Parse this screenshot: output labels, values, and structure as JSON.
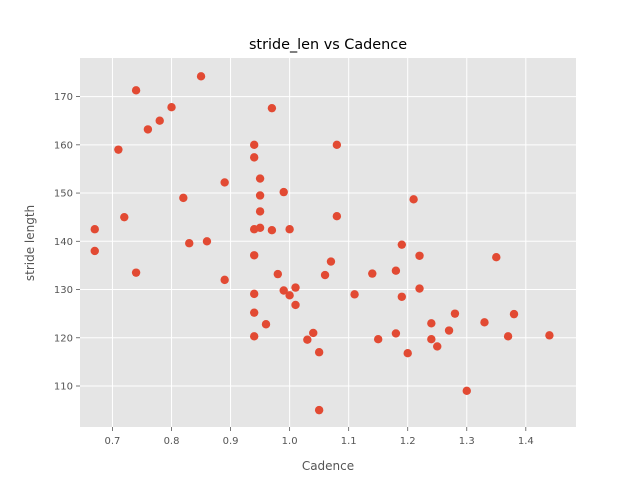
{
  "chart_data": {
    "type": "scatter",
    "title": "stride_len vs Cadence",
    "xlabel": "Cadence",
    "ylabel": "stride length",
    "xlim": [
      0.645,
      1.485
    ],
    "ylim": [
      101.5,
      178
    ],
    "grid": true,
    "style": "ggplot",
    "colors": {
      "plot_background": "#e5e5e5",
      "grid": "#ffffff",
      "point": "#e24a33",
      "text": "#555555",
      "tick": "#555555"
    },
    "xticks": [
      {
        "value": 0.7,
        "label": "0.7"
      },
      {
        "value": 0.8,
        "label": "0.8"
      },
      {
        "value": 0.9,
        "label": "0.9"
      },
      {
        "value": 1.0,
        "label": "1.0"
      },
      {
        "value": 1.1,
        "label": "1.1"
      },
      {
        "value": 1.2,
        "label": "1.2"
      },
      {
        "value": 1.3,
        "label": "1.3"
      },
      {
        "value": 1.4,
        "label": "1.4"
      }
    ],
    "yticks": [
      {
        "value": 110,
        "label": "110"
      },
      {
        "value": 120,
        "label": "120"
      },
      {
        "value": 130,
        "label": "130"
      },
      {
        "value": 140,
        "label": "140"
      },
      {
        "value": 150,
        "label": "150"
      },
      {
        "value": 160,
        "label": "160"
      },
      {
        "value": 170,
        "label": "170"
      }
    ],
    "points": [
      {
        "x": 0.67,
        "y": 142.5
      },
      {
        "x": 0.67,
        "y": 138.0
      },
      {
        "x": 0.71,
        "y": 159.0
      },
      {
        "x": 0.72,
        "y": 145.0
      },
      {
        "x": 0.74,
        "y": 171.3
      },
      {
        "x": 0.74,
        "y": 133.5
      },
      {
        "x": 0.76,
        "y": 163.2
      },
      {
        "x": 0.78,
        "y": 165.0
      },
      {
        "x": 0.8,
        "y": 167.8
      },
      {
        "x": 0.82,
        "y": 149.0
      },
      {
        "x": 0.83,
        "y": 139.6
      },
      {
        "x": 0.85,
        "y": 174.2
      },
      {
        "x": 0.86,
        "y": 140.0
      },
      {
        "x": 0.89,
        "y": 152.2
      },
      {
        "x": 0.89,
        "y": 132.0
      },
      {
        "x": 0.94,
        "y": 160.0
      },
      {
        "x": 0.94,
        "y": 157.4
      },
      {
        "x": 0.94,
        "y": 142.5
      },
      {
        "x": 0.94,
        "y": 137.1
      },
      {
        "x": 0.94,
        "y": 129.1
      },
      {
        "x": 0.94,
        "y": 125.2
      },
      {
        "x": 0.94,
        "y": 120.3
      },
      {
        "x": 0.95,
        "y": 153.0
      },
      {
        "x": 0.95,
        "y": 149.5
      },
      {
        "x": 0.95,
        "y": 146.2
      },
      {
        "x": 0.95,
        "y": 142.8
      },
      {
        "x": 0.96,
        "y": 122.8
      },
      {
        "x": 0.97,
        "y": 167.6
      },
      {
        "x": 0.97,
        "y": 142.3
      },
      {
        "x": 0.98,
        "y": 133.2
      },
      {
        "x": 0.99,
        "y": 150.2
      },
      {
        "x": 0.99,
        "y": 129.8
      },
      {
        "x": 1.0,
        "y": 142.5
      },
      {
        "x": 1.0,
        "y": 128.8
      },
      {
        "x": 1.01,
        "y": 130.4
      },
      {
        "x": 1.01,
        "y": 126.8
      },
      {
        "x": 1.03,
        "y": 119.6
      },
      {
        "x": 1.04,
        "y": 121.0
      },
      {
        "x": 1.05,
        "y": 117.0
      },
      {
        "x": 1.05,
        "y": 105.0
      },
      {
        "x": 1.06,
        "y": 133.0
      },
      {
        "x": 1.07,
        "y": 135.8
      },
      {
        "x": 1.08,
        "y": 160.0
      },
      {
        "x": 1.08,
        "y": 145.2
      },
      {
        "x": 1.11,
        "y": 129.0
      },
      {
        "x": 1.14,
        "y": 133.3
      },
      {
        "x": 1.15,
        "y": 119.7
      },
      {
        "x": 1.18,
        "y": 133.9
      },
      {
        "x": 1.18,
        "y": 120.9
      },
      {
        "x": 1.19,
        "y": 139.3
      },
      {
        "x": 1.19,
        "y": 128.5
      },
      {
        "x": 1.2,
        "y": 116.8
      },
      {
        "x": 1.21,
        "y": 148.7
      },
      {
        "x": 1.22,
        "y": 137.0
      },
      {
        "x": 1.22,
        "y": 130.2
      },
      {
        "x": 1.24,
        "y": 123.0
      },
      {
        "x": 1.24,
        "y": 119.7
      },
      {
        "x": 1.25,
        "y": 118.2
      },
      {
        "x": 1.27,
        "y": 121.5
      },
      {
        "x": 1.28,
        "y": 125.0
      },
      {
        "x": 1.3,
        "y": 109.0
      },
      {
        "x": 1.33,
        "y": 123.2
      },
      {
        "x": 1.35,
        "y": 136.7
      },
      {
        "x": 1.37,
        "y": 120.3
      },
      {
        "x": 1.38,
        "y": 124.9
      },
      {
        "x": 1.44,
        "y": 120.5
      }
    ]
  }
}
